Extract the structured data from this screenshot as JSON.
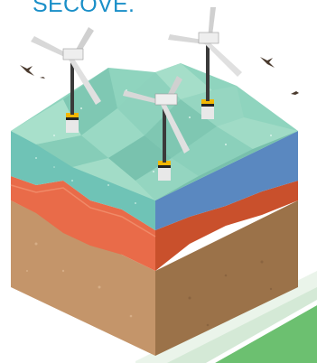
{
  "caption": {
    "text": "SECOVE."
  },
  "colors": {
    "caption_text": "#1a8fc8",
    "sea_light": "#9ddcc6",
    "sea_mid": "#7fcbb8",
    "water_band_front": "#6fc3b6",
    "water_band_side": "#5a88c0",
    "crust_front": "#e96b49",
    "crust_side": "#c9502c",
    "soil_front": "#c4956a",
    "soil_side": "#9b7249",
    "shadow": "#dfeee0",
    "grass": "#6cc070",
    "tower": "#3a3a3a",
    "blade": "#d8d8d8",
    "base_stripe": "#f2b705",
    "bird": "#4a3a2e"
  },
  "scene": {
    "turbine_count": 3,
    "bird_count": 4
  }
}
